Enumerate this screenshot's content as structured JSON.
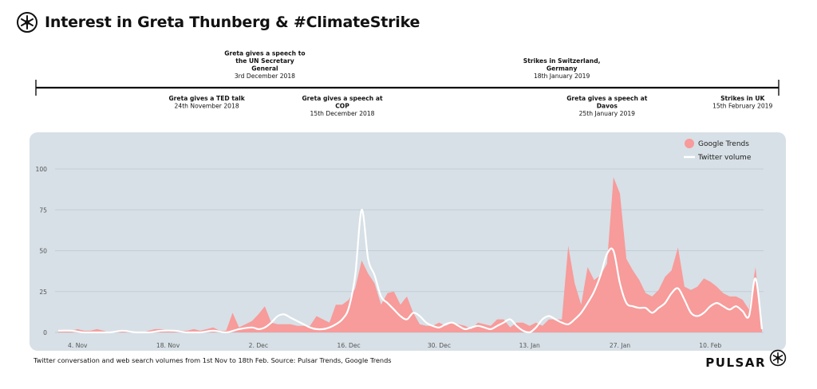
{
  "header": {
    "title": "Interest in Greta Thunberg & #ClimateStrike",
    "logo_icon": "pulsar-logo-icon"
  },
  "timeline": {
    "events": [
      {
        "title_lines": [
          "Greta gives a TED talk"
        ],
        "date": "24th November 2018",
        "day": 23,
        "position": "below"
      },
      {
        "title_lines": [
          "Greta gives a speech to",
          "the UN Secretary",
          "General"
        ],
        "date": "3rd December 2018",
        "day": 32,
        "position": "above"
      },
      {
        "title_lines": [
          "Greta gives a speech at",
          "COP"
        ],
        "date": "15th December 2018",
        "day": 44,
        "position": "below"
      },
      {
        "title_lines": [
          "Strikes in Switzerland,",
          "Germany"
        ],
        "date": "18th January 2019",
        "day": 78,
        "position": "above"
      },
      {
        "title_lines": [
          "Greta gives a speech at",
          "Davos"
        ],
        "date": "25th January 2019",
        "day": 85,
        "position": "below"
      },
      {
        "title_lines": [
          "Strikes in UK"
        ],
        "date": "15th February 2019",
        "day": 106,
        "position": "below"
      }
    ]
  },
  "chart_data": {
    "type": "area",
    "title": "Interest in Greta Thunberg & #ClimateStrike",
    "xlabel": "",
    "ylabel": "",
    "x_start": "1st Nov 2018",
    "x_end": "18th Feb 2019",
    "xlim": [
      0,
      109
    ],
    "ylim": [
      0,
      100
    ],
    "yticks": [
      0,
      25,
      50,
      75,
      100
    ],
    "grid": true,
    "xticks": [
      {
        "day": 3,
        "label": "4. Nov"
      },
      {
        "day": 17,
        "label": "18. Nov"
      },
      {
        "day": 31,
        "label": "2. Dec"
      },
      {
        "day": 45,
        "label": "16. Dec"
      },
      {
        "day": 59,
        "label": "30. Dec"
      },
      {
        "day": 73,
        "label": "13. Jan"
      },
      {
        "day": 87,
        "label": "27. Jan"
      },
      {
        "day": 101,
        "label": "10. Feb"
      }
    ],
    "legend_position": "top-right",
    "series": [
      {
        "name": "Google Trends",
        "kind": "area",
        "color": "#f79b9b",
        "points": [
          [
            0,
            1
          ],
          [
            2,
            1
          ],
          [
            3,
            2
          ],
          [
            4,
            1
          ],
          [
            5,
            1
          ],
          [
            6,
            2
          ],
          [
            7,
            1
          ],
          [
            8,
            0
          ],
          [
            9,
            1
          ],
          [
            10,
            1
          ],
          [
            11,
            1
          ],
          [
            12,
            0
          ],
          [
            13,
            0
          ],
          [
            14,
            1
          ],
          [
            15,
            2
          ],
          [
            16,
            2
          ],
          [
            17,
            1
          ],
          [
            18,
            1
          ],
          [
            19,
            1
          ],
          [
            20,
            1
          ],
          [
            21,
            2
          ],
          [
            22,
            1
          ],
          [
            23,
            2
          ],
          [
            24,
            3
          ],
          [
            25,
            1
          ],
          [
            26,
            1
          ],
          [
            27,
            12
          ],
          [
            28,
            3
          ],
          [
            29,
            5
          ],
          [
            30,
            7
          ],
          [
            31,
            11
          ],
          [
            32,
            16
          ],
          [
            33,
            6
          ],
          [
            34,
            5
          ],
          [
            35,
            5
          ],
          [
            36,
            5
          ],
          [
            37,
            4
          ],
          [
            38,
            4
          ],
          [
            39,
            4
          ],
          [
            40,
            10
          ],
          [
            41,
            8
          ],
          [
            42,
            6
          ],
          [
            43,
            17
          ],
          [
            44,
            17
          ],
          [
            45,
            20
          ],
          [
            46,
            27
          ],
          [
            47,
            44
          ],
          [
            48,
            36
          ],
          [
            49,
            30
          ],
          [
            50,
            17
          ],
          [
            51,
            24
          ],
          [
            52,
            25
          ],
          [
            53,
            17
          ],
          [
            54,
            22
          ],
          [
            55,
            12
          ],
          [
            56,
            5
          ],
          [
            57,
            4
          ],
          [
            58,
            4
          ],
          [
            59,
            6
          ],
          [
            60,
            4
          ],
          [
            61,
            6
          ],
          [
            62,
            5
          ],
          [
            63,
            4
          ],
          [
            64,
            2
          ],
          [
            65,
            6
          ],
          [
            66,
            5
          ],
          [
            67,
            4
          ],
          [
            68,
            8
          ],
          [
            69,
            8
          ],
          [
            70,
            3
          ],
          [
            71,
            6
          ],
          [
            72,
            6
          ],
          [
            73,
            4
          ],
          [
            74,
            6
          ],
          [
            75,
            4
          ],
          [
            76,
            8
          ],
          [
            77,
            8
          ],
          [
            78,
            8
          ],
          [
            79,
            53
          ],
          [
            80,
            30
          ],
          [
            81,
            17
          ],
          [
            82,
            40
          ],
          [
            83,
            32
          ],
          [
            84,
            35
          ],
          [
            85,
            42
          ],
          [
            86,
            95
          ],
          [
            87,
            85
          ],
          [
            88,
            45
          ],
          [
            89,
            38
          ],
          [
            90,
            32
          ],
          [
            91,
            24
          ],
          [
            92,
            22
          ],
          [
            93,
            26
          ],
          [
            94,
            34
          ],
          [
            95,
            38
          ],
          [
            96,
            52
          ],
          [
            97,
            28
          ],
          [
            98,
            26
          ],
          [
            99,
            28
          ],
          [
            100,
            33
          ],
          [
            101,
            31
          ],
          [
            102,
            28
          ],
          [
            103,
            24
          ],
          [
            104,
            22
          ],
          [
            105,
            22
          ],
          [
            106,
            20
          ],
          [
            107,
            14
          ],
          [
            108,
            40
          ],
          [
            109,
            2
          ]
        ]
      },
      {
        "name": "Twitter volume",
        "kind": "line",
        "color": "#ffffff",
        "points": [
          [
            0,
            1
          ],
          [
            2,
            1
          ],
          [
            4,
            0
          ],
          [
            6,
            0
          ],
          [
            8,
            0
          ],
          [
            10,
            1
          ],
          [
            12,
            0
          ],
          [
            14,
            0
          ],
          [
            16,
            1
          ],
          [
            18,
            1
          ],
          [
            20,
            0
          ],
          [
            22,
            0
          ],
          [
            24,
            1
          ],
          [
            26,
            0
          ],
          [
            28,
            2
          ],
          [
            30,
            3
          ],
          [
            31,
            2
          ],
          [
            32,
            3
          ],
          [
            33,
            6
          ],
          [
            34,
            10
          ],
          [
            35,
            11
          ],
          [
            36,
            9
          ],
          [
            37,
            7
          ],
          [
            38,
            5
          ],
          [
            39,
            3
          ],
          [
            40,
            2
          ],
          [
            41,
            2
          ],
          [
            42,
            3
          ],
          [
            43,
            5
          ],
          [
            44,
            8
          ],
          [
            45,
            15
          ],
          [
            46,
            35
          ],
          [
            47,
            75
          ],
          [
            48,
            45
          ],
          [
            49,
            35
          ],
          [
            50,
            22
          ],
          [
            51,
            18
          ],
          [
            52,
            14
          ],
          [
            53,
            10
          ],
          [
            54,
            8
          ],
          [
            55,
            12
          ],
          [
            56,
            10
          ],
          [
            57,
            6
          ],
          [
            58,
            4
          ],
          [
            59,
            3
          ],
          [
            60,
            5
          ],
          [
            61,
            6
          ],
          [
            62,
            4
          ],
          [
            63,
            2
          ],
          [
            64,
            3
          ],
          [
            65,
            4
          ],
          [
            66,
            3
          ],
          [
            67,
            2
          ],
          [
            68,
            4
          ],
          [
            69,
            6
          ],
          [
            70,
            8
          ],
          [
            71,
            4
          ],
          [
            72,
            1
          ],
          [
            73,
            0
          ],
          [
            74,
            3
          ],
          [
            75,
            8
          ],
          [
            76,
            10
          ],
          [
            77,
            8
          ],
          [
            78,
            6
          ],
          [
            79,
            5
          ],
          [
            80,
            8
          ],
          [
            81,
            12
          ],
          [
            82,
            18
          ],
          [
            83,
            25
          ],
          [
            84,
            35
          ],
          [
            85,
            48
          ],
          [
            86,
            50
          ],
          [
            87,
            30
          ],
          [
            88,
            18
          ],
          [
            89,
            16
          ],
          [
            90,
            15
          ],
          [
            91,
            15
          ],
          [
            92,
            12
          ],
          [
            93,
            15
          ],
          [
            94,
            18
          ],
          [
            95,
            24
          ],
          [
            96,
            27
          ],
          [
            97,
            20
          ],
          [
            98,
            12
          ],
          [
            99,
            10
          ],
          [
            100,
            12
          ],
          [
            101,
            16
          ],
          [
            102,
            18
          ],
          [
            103,
            16
          ],
          [
            104,
            14
          ],
          [
            105,
            16
          ],
          [
            106,
            13
          ],
          [
            107,
            10
          ],
          [
            108,
            33
          ],
          [
            109,
            2
          ]
        ]
      }
    ]
  },
  "footnote": "Twitter conversation and web search volumes from 1st Nov to 18th Feb. Source: Pulsar Trends, Google Trends",
  "brand": {
    "name": "PULSAR",
    "logo_icon": "pulsar-logo-icon"
  }
}
